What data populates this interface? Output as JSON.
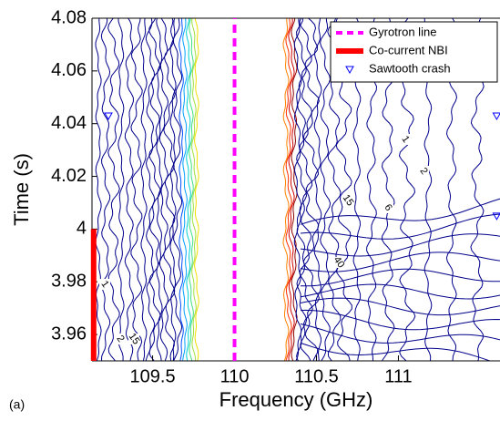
{
  "chart_data": {
    "type": "contour",
    "panel_label": "(a)",
    "x_label": "Frequency (GHz)",
    "y_label": "Time (s)",
    "xlim": [
      109.13,
      111.62
    ],
    "ylim": [
      3.95,
      4.08
    ],
    "xticks": [
      109.5,
      110,
      110.5,
      111
    ],
    "yticks": [
      3.96,
      3.98,
      4,
      4.02,
      4.04,
      4.06,
      4.08
    ],
    "contour_labels": [
      "1",
      "2",
      "15",
      "1",
      "2",
      "15",
      "6",
      "40"
    ],
    "legend": "upper right",
    "series": [
      {
        "name": "Gyrotron line",
        "color": "#ff00ff",
        "x": [
          110,
          110
        ],
        "y": [
          3.95,
          4.08
        ]
      },
      {
        "name": "Co-current NBI",
        "color": "#ff0000",
        "x": [
          109.14,
          109.14
        ],
        "y": [
          3.95,
          4
        ]
      },
      {
        "name": "Sawtooth crash",
        "color": "#0000ff",
        "x": [
          109.23,
          111.6,
          111.6
        ],
        "y": [
          4.043,
          4.043,
          4.005
        ]
      }
    ]
  }
}
